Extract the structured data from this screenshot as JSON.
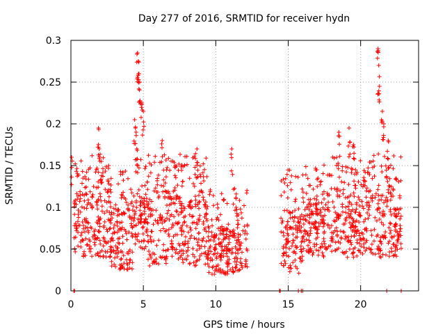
{
  "chart_data": {
    "type": "scatter",
    "title": "Day 277 of 2016, SRMTID for receiver hydn",
    "xlabel": "GPS time / hours",
    "ylabel": "SRMTID / TECUs",
    "xlim": [
      0,
      24
    ],
    "ylim": [
      0,
      0.3
    ],
    "xticks": [
      0,
      5,
      10,
      15,
      20
    ],
    "yticks": [
      0,
      0.05,
      0.1,
      0.15,
      0.2,
      0.25,
      0.3
    ],
    "ytick_labels": [
      "0",
      "0.05",
      "0.1",
      "0.15",
      "0.2",
      "0.25",
      "0.3"
    ],
    "grid": true,
    "marker": "+",
    "color": "#ff0000",
    "series": [
      {
        "name": "SRMTID",
        "segments": [
          {
            "x_start": 0.2,
            "x_end": 2.8,
            "y_min": 0.04,
            "y_max": 0.12
          },
          {
            "x_start": 2.8,
            "x_end": 4.3,
            "y_min": 0.025,
            "y_max": 0.1
          },
          {
            "x_start": 4.3,
            "x_end": 5.3,
            "y_min": 0.05,
            "y_max": 0.12
          },
          {
            "x_start": 5.3,
            "x_end": 9.5,
            "y_min": 0.03,
            "y_max": 0.12
          },
          {
            "x_start": 9.5,
            "x_end": 12.2,
            "y_min": 0.02,
            "y_max": 0.08
          },
          {
            "x_start": 14.5,
            "x_end": 15.0,
            "y_min": 0.03,
            "y_max": 0.1
          },
          {
            "x_start": 15.0,
            "x_end": 16.0,
            "y_min": 0.02,
            "y_max": 0.1
          },
          {
            "x_start": 16.0,
            "x_end": 18.0,
            "y_min": 0.04,
            "y_max": 0.11
          },
          {
            "x_start": 18.0,
            "x_end": 22.8,
            "y_min": 0.04,
            "y_max": 0.12
          }
        ],
        "peaks": [
          {
            "x": 0.05,
            "y": 0.16
          },
          {
            "x": 1.9,
            "y": 0.195
          },
          {
            "x": 1.95,
            "y": 0.17
          },
          {
            "x": 2.1,
            "y": 0.155
          },
          {
            "x": 2.6,
            "y": 0.15
          },
          {
            "x": 4.4,
            "y": 0.205
          },
          {
            "x": 4.5,
            "y": 0.19
          },
          {
            "x": 4.55,
            "y": 0.17
          },
          {
            "x": 4.6,
            "y": 0.285
          },
          {
            "x": 4.65,
            "y": 0.275
          },
          {
            "x": 4.7,
            "y": 0.26
          },
          {
            "x": 4.75,
            "y": 0.25
          },
          {
            "x": 4.9,
            "y": 0.225
          },
          {
            "x": 5.0,
            "y": 0.215
          },
          {
            "x": 6.3,
            "y": 0.18
          },
          {
            "x": 7.2,
            "y": 0.15
          },
          {
            "x": 8.7,
            "y": 0.17
          },
          {
            "x": 11.1,
            "y": 0.17
          },
          {
            "x": 17.0,
            "y": 0.125
          },
          {
            "x": 18.5,
            "y": 0.19
          },
          {
            "x": 19.2,
            "y": 0.195
          },
          {
            "x": 19.5,
            "y": 0.175
          },
          {
            "x": 21.2,
            "y": 0.29
          },
          {
            "x": 21.25,
            "y": 0.27
          },
          {
            "x": 21.3,
            "y": 0.245
          },
          {
            "x": 21.5,
            "y": 0.215
          },
          {
            "x": 21.6,
            "y": 0.2
          },
          {
            "x": 21.9,
            "y": 0.18
          }
        ],
        "zero_points": [
          0.2,
          0.25,
          14.4,
          14.45,
          15.7,
          15.9,
          16.0,
          21.8,
          22.8
        ]
      }
    ]
  }
}
